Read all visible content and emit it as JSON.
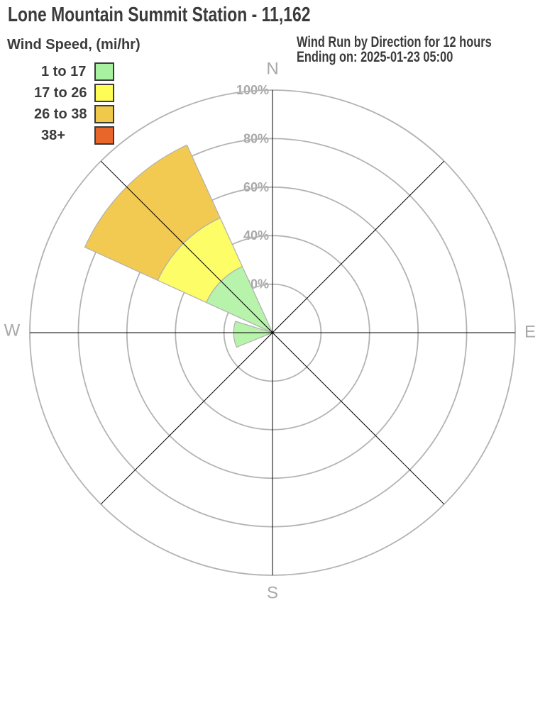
{
  "page": {
    "title": "Lone Mountain Summit Station - 11,162"
  },
  "legend": {
    "title": "Wind Speed, (mi/hr)",
    "items": [
      {
        "label": "1 to 17",
        "color": "#a8f1a0"
      },
      {
        "label": "17 to 26",
        "color": "#fdfd55"
      },
      {
        "label": "26 to 38",
        "color": "#f0c94a"
      },
      {
        "label": "38+",
        "color": "#e8662a"
      }
    ]
  },
  "subtitle": {
    "line1": "Wind Run by Direction for 12 hours",
    "line2": "Ending on: 2025-01-23 05:00"
  },
  "chart_data": {
    "type": "windrose",
    "title": "Wind Run by Direction for 12 hours",
    "subtitle": "Ending on: 2025-01-23 05:00",
    "legend_title": "Wind Speed, (mi/hr)",
    "speed_bins_mihr": [
      "1 to 17",
      "17 to 26",
      "26 to 38",
      "38+"
    ],
    "bin_legend_colors": [
      "#a8f1a0",
      "#fdfd55",
      "#f0c94a",
      "#e8662a"
    ],
    "bin_petal_colors": [
      "#b7f3ab",
      "#fdfd68",
      "#f2ca52",
      "#e8662a"
    ],
    "radial_axis": {
      "unit": "%",
      "ticks_pct": [
        20,
        40,
        60,
        80,
        100
      ],
      "tick_labels": [
        "20%",
        "40%",
        "60%",
        "80%",
        "100%"
      ],
      "max_pct": 100
    },
    "compass_labels": {
      "n": "N",
      "e": "E",
      "s": "S",
      "w": "W"
    },
    "axes_azimuth_deg": [
      0,
      45,
      90,
      135
    ],
    "petals": [
      {
        "direction": "NW",
        "start_deg": 294.5,
        "end_deg": 335.5,
        "segments_pct": [
          30,
          22,
          33,
          0
        ],
        "total_pct": 85
      },
      {
        "direction": "W",
        "start_deg": 248,
        "end_deg": 287,
        "segments_pct": [
          16,
          0,
          0,
          0
        ],
        "total_pct": 16
      }
    ],
    "colors": {
      "ring": "#b3b3b3",
      "axis": "#000000",
      "gray_labels": "#a8a8a8",
      "petal_stroke": "#b0b0b0",
      "text": "#3b3b3b"
    }
  }
}
